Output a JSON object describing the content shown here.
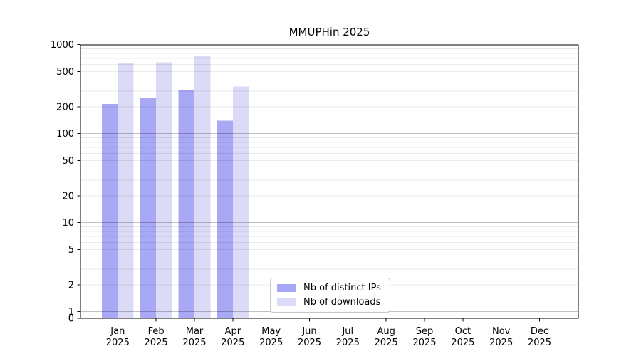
{
  "title": "MMUPHin 2025",
  "legend": {
    "items": [
      {
        "label": "Nb of distinct IPs",
        "color": "#a8a8f5"
      },
      {
        "label": "Nb of downloads",
        "color": "#dbdbf8"
      }
    ]
  },
  "chart_data": {
    "type": "bar",
    "title": "MMUPHin 2025",
    "categories": [
      "Jan",
      "Feb",
      "Mar",
      "Apr",
      "May",
      "Jun",
      "Jul",
      "Aug",
      "Sep",
      "Oct",
      "Nov",
      "Dec"
    ],
    "category_year": "2025",
    "series": [
      {
        "name": "Nb of distinct IPs",
        "color": "#a8a8f5",
        "values": [
          215,
          255,
          305,
          140,
          null,
          null,
          null,
          null,
          null,
          null,
          null,
          null
        ]
      },
      {
        "name": "Nb of downloads",
        "color": "#dbdbf8",
        "values": [
          615,
          635,
          755,
          340,
          null,
          null,
          null,
          null,
          null,
          null,
          null,
          null
        ]
      }
    ],
    "yscale": "log",
    "ylim": [
      0,
      1000
    ],
    "yticks": [
      1000,
      500,
      200,
      100,
      50,
      20,
      10,
      5,
      2,
      1,
      0
    ],
    "grid": "both",
    "grid_minor_color": "rgba(0,0,0,0.08)",
    "grid_major_color": "rgba(0,0,0,0.24)",
    "legend_position": "bottom-center",
    "bar_gap_between_pair": 0,
    "spine_color": "#000000"
  }
}
